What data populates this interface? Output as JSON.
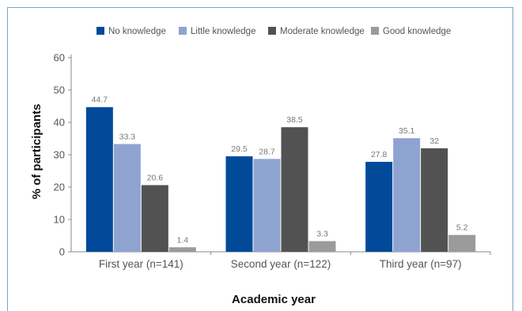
{
  "chart_data": {
    "type": "bar",
    "categories": [
      "First year (n=141)",
      "Second year (n=122)",
      "Third year (n=97)"
    ],
    "series": [
      {
        "name": "No knowledge",
        "color": "#004a99",
        "values": [
          44.7,
          29.5,
          27.8
        ]
      },
      {
        "name": "Little knowledge",
        "color": "#8fa3d1",
        "values": [
          33.3,
          28.7,
          35.1
        ]
      },
      {
        "name": "Moderate knowledge",
        "color": "#525252",
        "values": [
          20.6,
          38.5,
          32
        ]
      },
      {
        "name": "Good knowledge",
        "color": "#9b9b9b",
        "values": [
          1.4,
          3.3,
          5.2
        ]
      }
    ],
    "xlabel": "Academic year",
    "ylabel": "% of participants",
    "ylim": [
      0,
      60
    ],
    "yticks": [
      0,
      10,
      20,
      30,
      40,
      50,
      60
    ],
    "legend_position": "top",
    "grid": false
  }
}
